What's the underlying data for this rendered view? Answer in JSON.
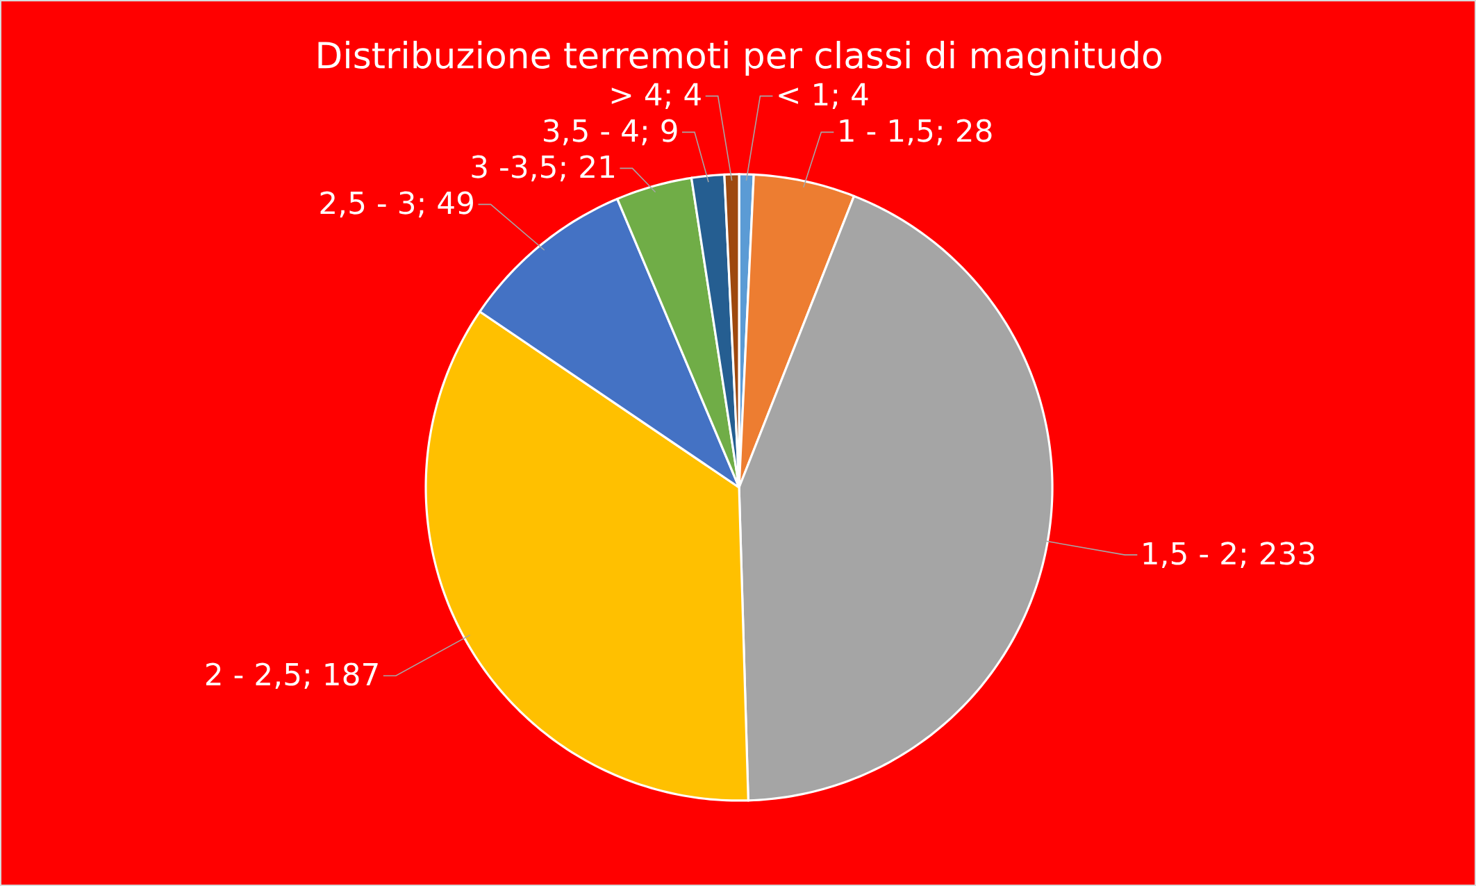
{
  "chart_data": {
    "type": "pie",
    "title": "Distribuzione terremoti per classi di magnitudo",
    "categories": [
      "< 1",
      "1 - 1,5",
      "1,5 - 2",
      "2 - 2,5",
      "2,5 - 3",
      "3 -3,5",
      "3,5 - 4",
      "> 4"
    ],
    "values": [
      4,
      28,
      233,
      187,
      49,
      21,
      9,
      4
    ],
    "colors": [
      "#5b9bd5",
      "#ed7d31",
      "#a5a5a5",
      "#ffc000",
      "#4472c4",
      "#70ad47",
      "#255e91",
      "#9e480e"
    ],
    "value_labels": [
      "; 4",
      "; 28",
      "; 233",
      "; 187",
      "; 49",
      "; 21",
      "; 9",
      "; 4"
    ]
  }
}
